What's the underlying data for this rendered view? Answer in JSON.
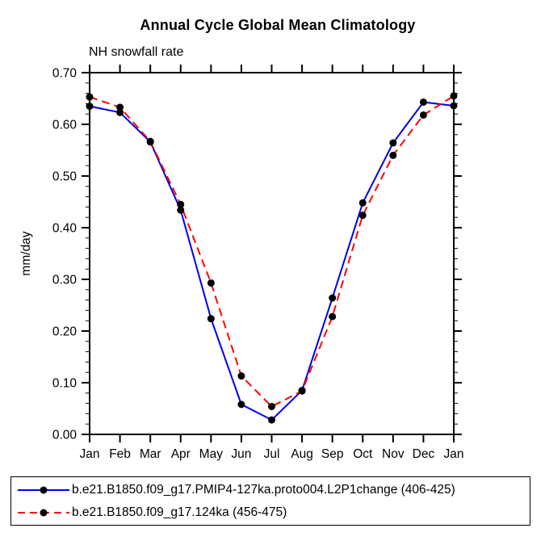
{
  "title": "Annual Cycle Global Mean Climatology",
  "subtitle": "NH snowfall rate",
  "chart_data": {
    "type": "line",
    "title": "Annual Cycle Global Mean Climatology",
    "subtitle": "NH snowfall rate",
    "xlabel": "",
    "ylabel": "mm/day",
    "categories": [
      "Jan",
      "Feb",
      "Mar",
      "Apr",
      "May",
      "Jun",
      "Jul",
      "Aug",
      "Sep",
      "Oct",
      "Nov",
      "Dec",
      "Jan"
    ],
    "series": [
      {
        "name": "b.e21.B1850.f09_g17.PMIP4-127ka.proto004.L2P1change (406-425)",
        "color": "#0000ee",
        "line_style": "solid",
        "marker": "filled-circle",
        "marker_color": "#000000",
        "values": [
          0.635,
          0.623,
          0.566,
          0.434,
          0.224,
          0.058,
          0.028,
          0.085,
          0.264,
          0.448,
          0.564,
          0.643,
          0.636
        ]
      },
      {
        "name": "b.e21.B1850.f09_g17.124ka (456-475)",
        "color": "#ff0000",
        "line_style": "dashed",
        "marker": "filled-circle",
        "marker_color": "#000000",
        "values": [
          0.653,
          0.633,
          0.567,
          0.445,
          0.293,
          0.113,
          0.054,
          0.084,
          0.228,
          0.424,
          0.54,
          0.618,
          0.655
        ]
      }
    ],
    "ylim": [
      0.0,
      0.7
    ],
    "ytick_step": 0.1,
    "yminor_step": 0.02,
    "ytick_labels": [
      "0.00",
      "0.10",
      "0.20",
      "0.30",
      "0.40",
      "0.50",
      "0.60",
      "0.70"
    ],
    "grid": false,
    "legend_position": "bottom-left",
    "axis_color": "#000000"
  }
}
